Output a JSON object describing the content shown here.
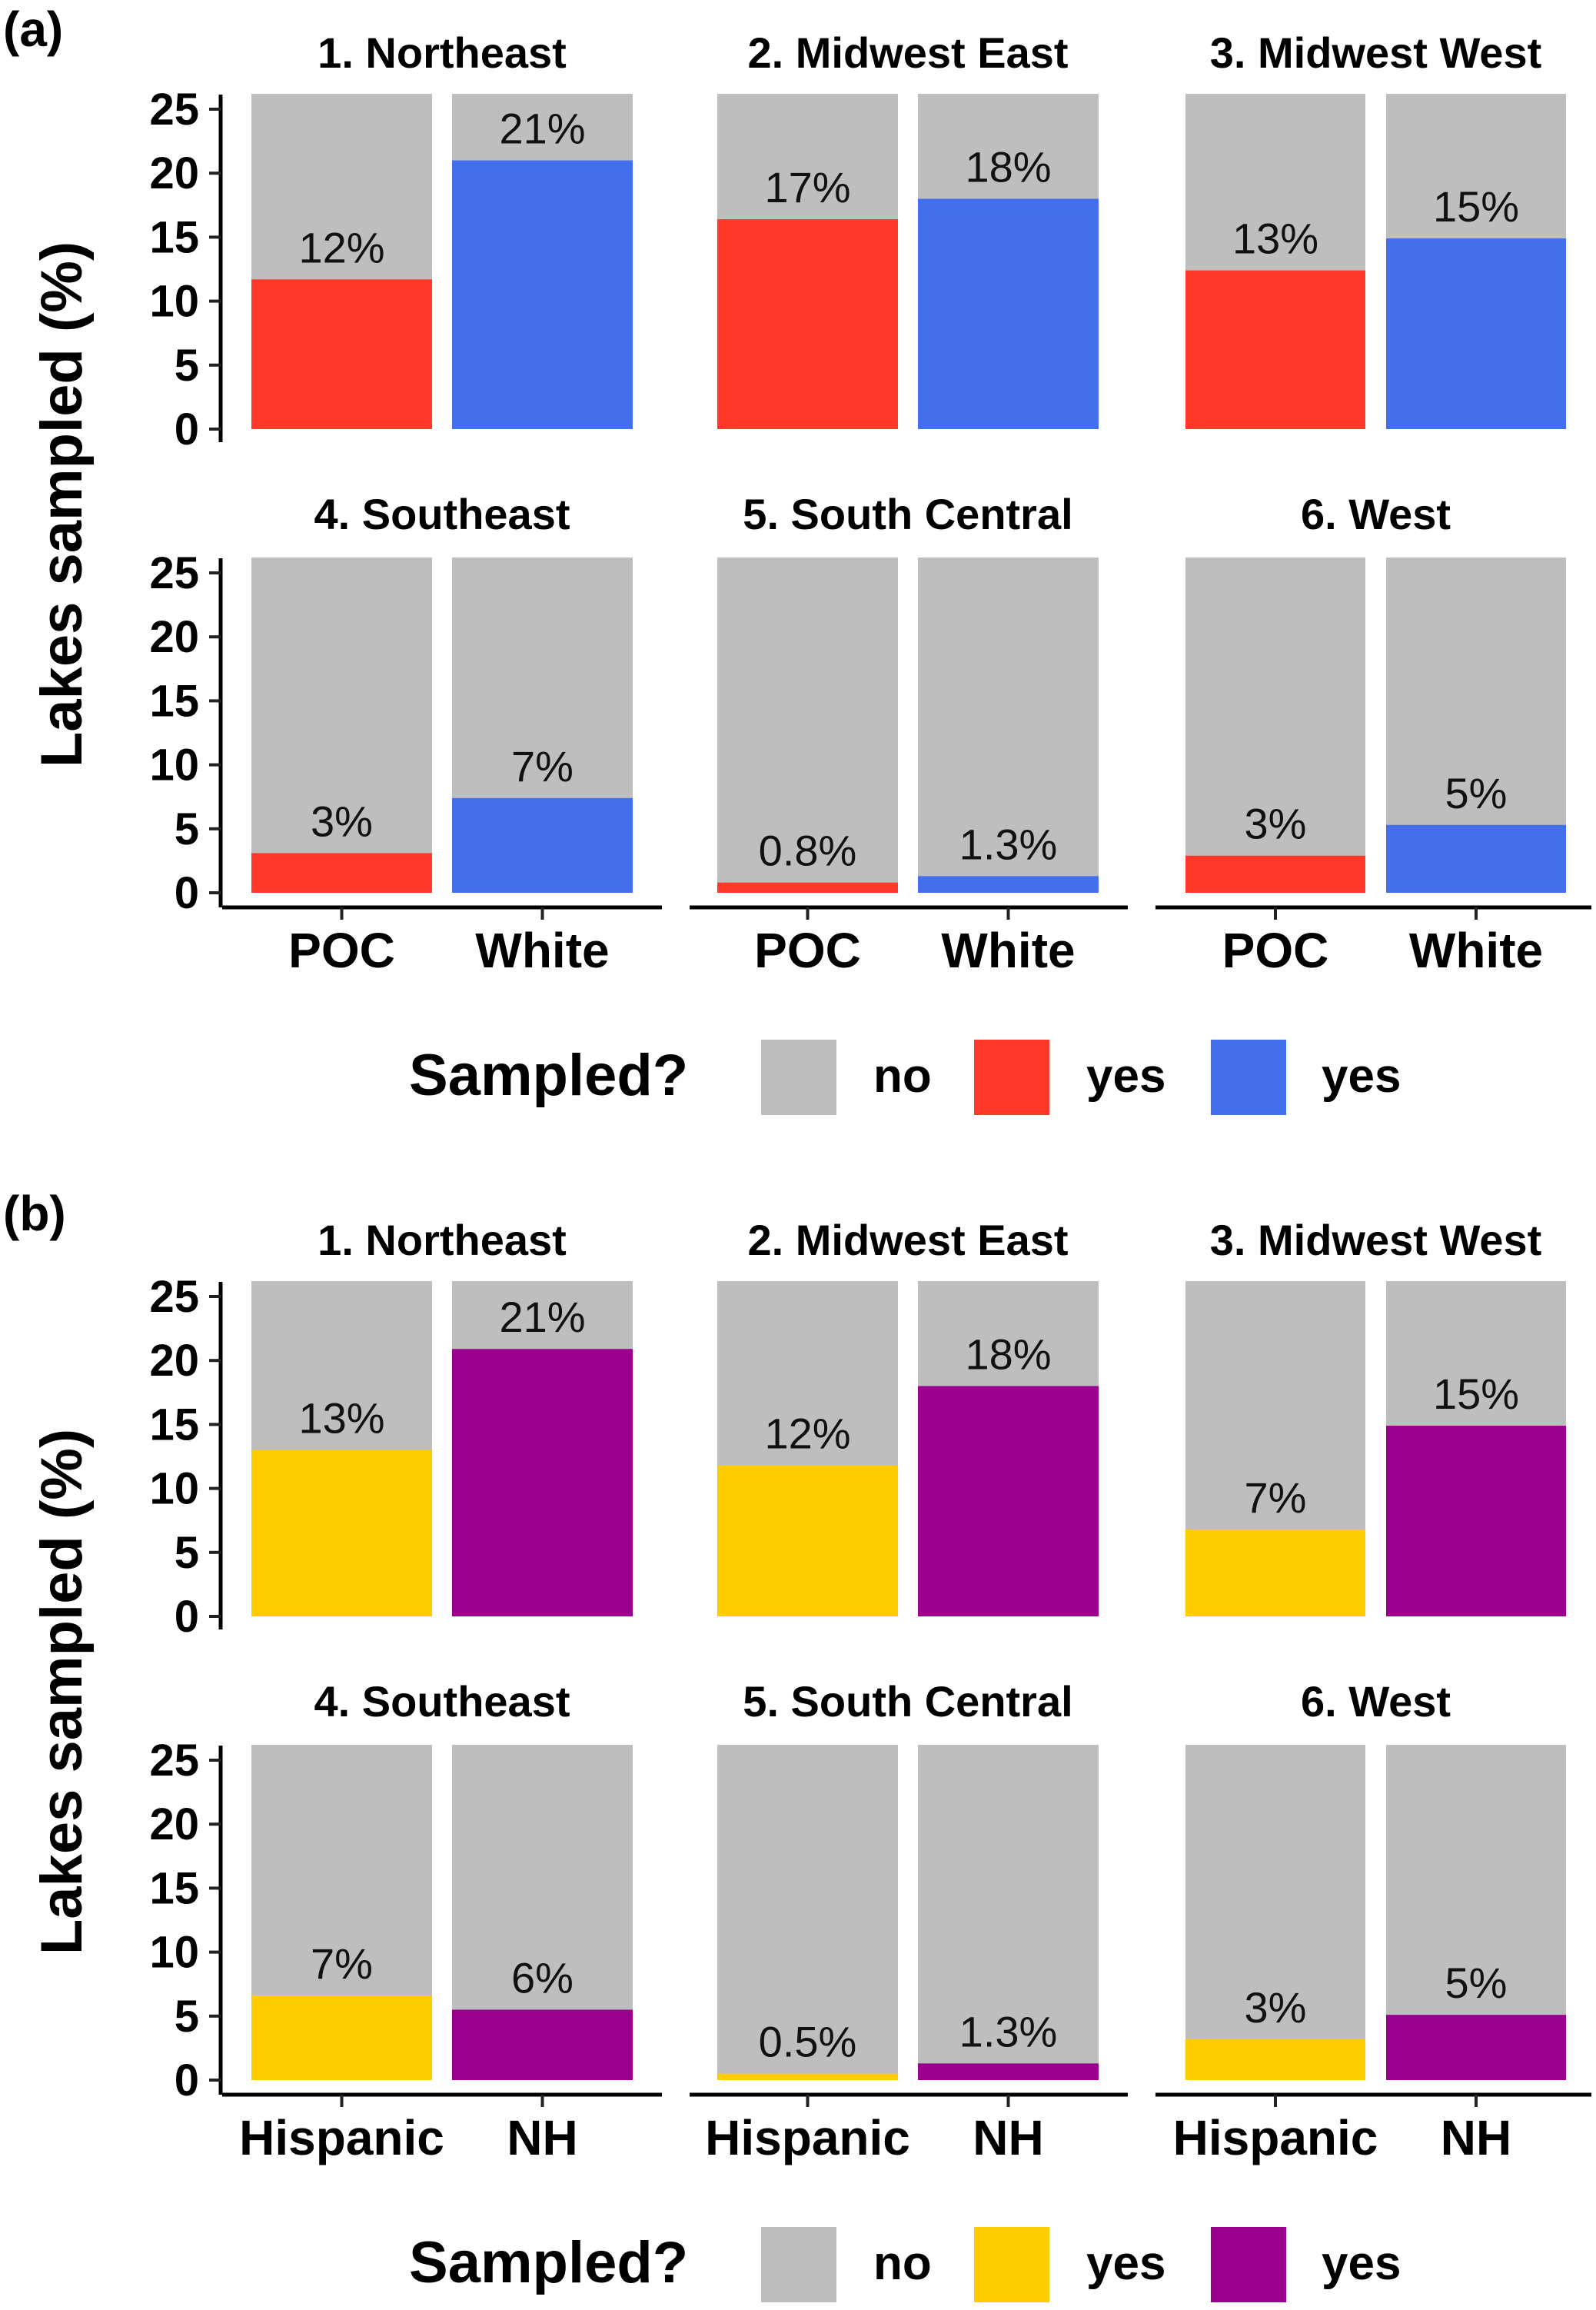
{
  "figure": {
    "panels": [
      {
        "letter": "(a)",
        "y_axis_title": "Lakes sampled (%)",
        "legend": {
          "title": "Sampled?",
          "items": [
            {
              "label": "no",
              "color": "#BEBEBE"
            },
            {
              "label": "yes",
              "color": "#FF3829"
            },
            {
              "label": "yes",
              "color": "#436EEC"
            }
          ]
        }
      },
      {
        "letter": "(b)",
        "y_axis_title": "Lakes sampled (%)",
        "legend": {
          "title": "Sampled?",
          "items": [
            {
              "label": "no",
              "color": "#BEBEBE"
            },
            {
              "label": "yes",
              "color": "#FFCC00"
            },
            {
              "label": "yes",
              "color": "#9A008E"
            }
          ]
        }
      }
    ]
  },
  "chart_data": [
    {
      "type": "bar",
      "stacked": true,
      "panel": "(a)",
      "title": "",
      "ylabel": "Lakes sampled (%)",
      "xlabel": "",
      "ylim": [
        0,
        26.2
      ],
      "yticks": [
        0,
        5,
        10,
        15,
        20,
        25
      ],
      "categories": [
        "POC",
        "White"
      ],
      "category_colors": {
        "POC": "#FF3829",
        "White": "#436EEC"
      },
      "no_color": "#BEBEBE",
      "legend_title": "Sampled?",
      "legend_placement": "bottom",
      "facets": [
        {
          "title": "1. Northeast",
          "values": [
            11.7,
            21.0
          ],
          "labels": [
            "12%",
            "21%"
          ]
        },
        {
          "title": "2. Midwest East",
          "values": [
            16.4,
            18.0
          ],
          "labels": [
            "17%",
            "18%"
          ]
        },
        {
          "title": "3. Midwest West",
          "values": [
            12.4,
            14.9
          ],
          "labels": [
            "13%",
            "15%"
          ]
        },
        {
          "title": "4. Southeast",
          "values": [
            3.1,
            7.4
          ],
          "labels": [
            "3%",
            "7%"
          ]
        },
        {
          "title": "5. South Central",
          "values": [
            0.8,
            1.3
          ],
          "labels": [
            "0.8%",
            "1.3%"
          ]
        },
        {
          "title": "6. West",
          "values": [
            2.9,
            5.3
          ],
          "labels": [
            "3%",
            "5%"
          ]
        }
      ]
    },
    {
      "type": "bar",
      "stacked": true,
      "panel": "(b)",
      "title": "",
      "ylabel": "Lakes sampled (%)",
      "xlabel": "",
      "ylim": [
        0,
        26.2
      ],
      "yticks": [
        0,
        5,
        10,
        15,
        20,
        25
      ],
      "categories": [
        "Hispanic",
        "NH"
      ],
      "category_colors": {
        "Hispanic": "#FFCC00",
        "NH": "#9A008E"
      },
      "no_color": "#BEBEBE",
      "legend_title": "Sampled?",
      "legend_placement": "bottom",
      "facets": [
        {
          "title": "1. Northeast",
          "values": [
            13.0,
            20.9
          ],
          "labels": [
            "13%",
            "21%"
          ]
        },
        {
          "title": "2. Midwest East",
          "values": [
            11.8,
            18.0
          ],
          "labels": [
            "12%",
            "18%"
          ]
        },
        {
          "title": "3. Midwest West",
          "values": [
            6.8,
            14.9
          ],
          "labels": [
            "7%",
            "15%"
          ]
        },
        {
          "title": "4. Southeast",
          "values": [
            6.6,
            5.5
          ],
          "labels": [
            "7%",
            "6%"
          ]
        },
        {
          "title": "5. South Central",
          "values": [
            0.5,
            1.3
          ],
          "labels": [
            "0.5%",
            "1.3%"
          ]
        },
        {
          "title": "6. West",
          "values": [
            3.2,
            5.1
          ],
          "labels": [
            "3%",
            "5%"
          ]
        }
      ]
    }
  ]
}
